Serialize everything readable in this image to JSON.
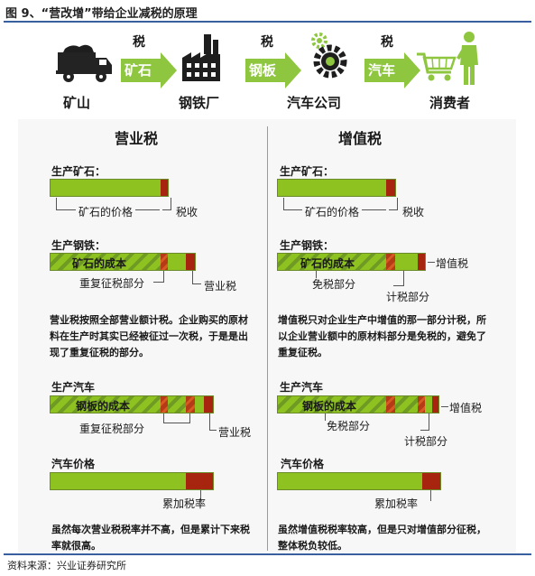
{
  "title": "图 9、“营改增”带给企业减税的原理",
  "source": "资料来源：兴业证券研究所",
  "flow": {
    "tax_mark": "税",
    "stages": [
      "矿山",
      "钢铁厂",
      "汽车公司",
      "消费者"
    ],
    "arrows": [
      "矿石",
      "钢板",
      "汽车"
    ]
  },
  "left": {
    "heading": "营业税",
    "ore": {
      "label": "生产矿石：",
      "price": "矿石的价格",
      "tax": "税收"
    },
    "steel": {
      "label": "生产钢铁：",
      "cost": "矿石的成本",
      "double": "重复征税部分",
      "tax": "营业税"
    },
    "paragraph": "营业税按照全部营业额计税。企业购买的原材料在生产时其实已经被征过一次税，于是是出现了重复征税的部分。",
    "car": {
      "label": "生产汽车",
      "cost": "钢板的成本",
      "double": "重复征税部分",
      "tax": "营业税"
    },
    "price": {
      "label": "汽车价格",
      "cumulative": "累加税率"
    },
    "note": "虽然每次营业税税率并不高，但是累计下来税率就很高。"
  },
  "right": {
    "heading": "增值税",
    "ore": {
      "label": "生产矿石：",
      "price": "矿石的价格",
      "tax": "税收"
    },
    "steel": {
      "label": "生产钢铁：",
      "cost": "矿石的成本",
      "exempt": "免税部分",
      "tax_part": "计税部分",
      "vat": "增值税"
    },
    "paragraph": "增值税只对企业生产中增值的那一部分计税，所以企业营业额中的原材料部分是免税的，避免了重复征税。",
    "car": {
      "label": "生产汽车",
      "cost": "钢板的成本",
      "exempt": "免税部分",
      "tax_part": "计税部分",
      "vat": "增值税"
    },
    "price": {
      "label": "汽车价格",
      "cumulative": "累加税率"
    },
    "note": "虽然增值税税率较高，但是只对增值部分征税，整体税负较低。"
  },
  "colors": {
    "green": "#8ec220",
    "red": "#a7250f",
    "rule": "#3a5f9e"
  },
  "icons": [
    "mine-truck-icon",
    "factory-icon",
    "gear-icon",
    "shopping-cart-icon",
    "consumer-icon"
  ]
}
